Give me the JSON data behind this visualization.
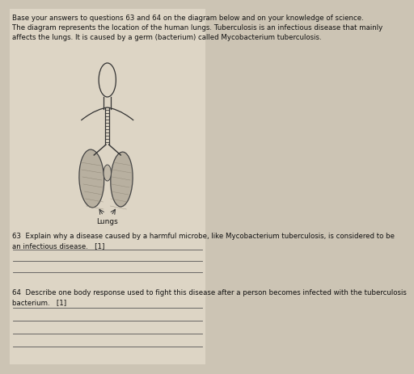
{
  "background_color": "#ccc4b4",
  "page_color": "#ddd5c5",
  "title_text": "Base your answers to questions 63 and 64 on the diagram below and on your knowledge of science.\nThe diagram represents the location of the human lungs. Tuberculosis is an infectious disease that mainly\naffects the lungs. It is caused by a germ (bacterium) called Mycobacterium tuberculosis.",
  "lungs_label": "Lungs",
  "q63_text": "63  Explain why a disease caused by a harmful microbe, like Mycobacterium tuberculosis, is considered to be\nan infectious disease.   [1]",
  "q64_text": "64  Describe one body response used to fight this disease after a person becomes infected with the tuberculosis\nbacterium.   [1]",
  "answer_lines_63": 3,
  "answer_lines_64": 4,
  "font_size_title": 6.2,
  "font_size_q": 6.2,
  "font_size_label": 6.5,
  "text_color": "#111111",
  "line_color": "#555555",
  "diagram_color": "#333333",
  "lung_fill": "#b8b0a0",
  "lung_edge": "#444444"
}
